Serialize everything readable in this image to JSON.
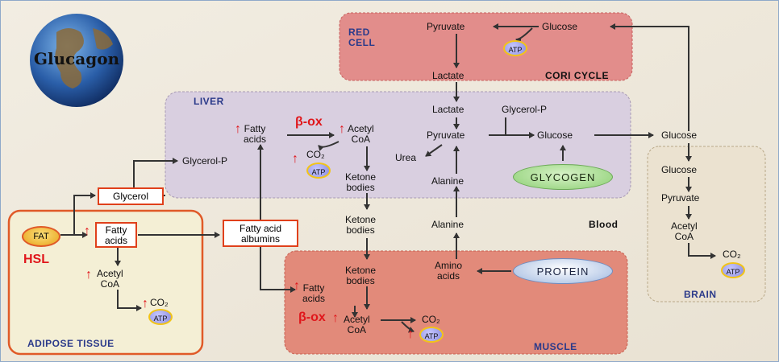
{
  "globe_label": "Glucagon",
  "red_cell": {
    "title_line1": "RED",
    "title_line2": "CELL",
    "pyruvate": "Pyruvate",
    "glucose": "Glucose",
    "atp": "ATP"
  },
  "cori_cycle": "CORI CYCLE",
  "lactate_top": "Lactate",
  "liver": {
    "title": "LIVER",
    "fatty_line1": "Fatty",
    "fatty_line2": "acids",
    "beta_ox": "β-ox",
    "acetyl_line1": "Acetyl",
    "acetyl_line2": "CoA",
    "co2": "CO₂",
    "atp": "ATP",
    "ketone_line1": "Ketone",
    "ketone_line2": "bodies",
    "lactate": "Lactate",
    "glycerol_p_top": "Glycerol-P",
    "pyruvate": "Pyruvate",
    "glucose": "Glucose",
    "urea": "Urea",
    "alanine": "Alanine",
    "glycogen": "GLYCOGEN",
    "glycerol_p": "Glycerol-P"
  },
  "blood": {
    "glycerol": "Glycerol",
    "fatty_albumin_line1": "Fatty acid",
    "fatty_albumin_line2": "albumins",
    "ketone_line1": "Ketone",
    "ketone_line2": "bodies",
    "alanine": "Alanine",
    "label": "Blood",
    "glucose": "Glucose"
  },
  "adipose": {
    "title": "ADIPOSE TISSUE",
    "fat": "FAT",
    "hsl": "HSL",
    "fatty_line1": "Fatty",
    "fatty_line2": "acids",
    "acetyl_line1": "Acetyl",
    "acetyl_line2": "CoA",
    "co2": "CO₂",
    "atp": "ATP"
  },
  "muscle": {
    "title": "MUSCLE",
    "ketone_line1": "Ketone",
    "ketone_line2": "bodies",
    "amino_line1": "Amino",
    "amino_line2": "acids",
    "protein": "PROTEIN",
    "fatty_line1": "Fatty",
    "fatty_line2": "acids",
    "beta_ox": "β-ox",
    "acetyl_line1": "Acetyl",
    "acetyl_line2": "CoA",
    "co2": "CO₂",
    "atp": "ATP"
  },
  "brain": {
    "title": "BRAIN",
    "glucose": "Glucose",
    "pyruvate": "Pyruvate",
    "acetyl_line1": "Acetyl",
    "acetyl_line2": "CoA",
    "co2": "CO₂",
    "atp": "ATP"
  },
  "up_arrow": "↑"
}
